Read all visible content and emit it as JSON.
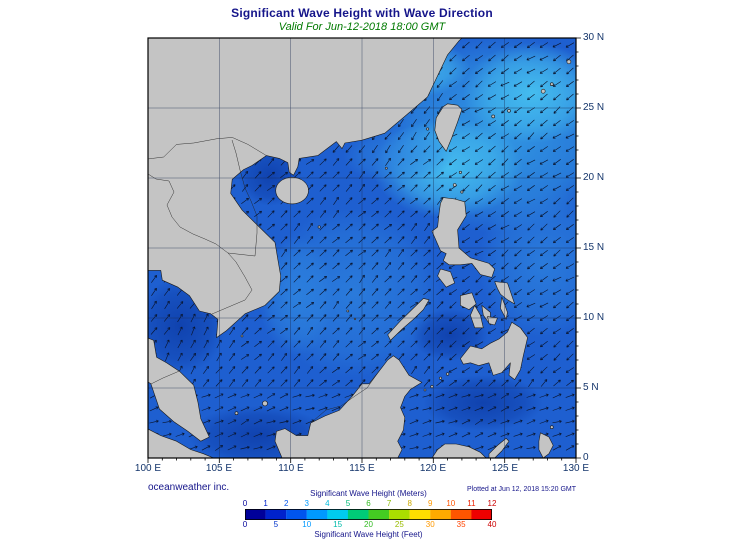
{
  "header": {
    "title": "Significant Wave Height with Wave Direction",
    "subtitle": "Valid For Jun-12-2018 18:00 GMT"
  },
  "footer": {
    "credit": "oceanweather inc.",
    "plotted": "Plotted at Jun 12, 2018 15:20 GMT"
  },
  "axes": {
    "x_ticks": [
      "100 E",
      "105 E",
      "110 E",
      "115 E",
      "120 E",
      "125 E",
      "130 E"
    ],
    "y_ticks": [
      "30 N",
      "25 N",
      "20 N",
      "15 N",
      "10 N",
      "5 N",
      "0"
    ]
  },
  "colorbar": {
    "meters_label": "Significant Wave Height (Meters)",
    "feet_label": "Significant Wave Height (Feet)",
    "meters_ticks": [
      "0",
      "1",
      "2",
      "3",
      "4",
      "5",
      "6",
      "7",
      "8",
      "9",
      "10",
      "11",
      "12"
    ],
    "feet_ticks": [
      "0",
      "5",
      "10",
      "15",
      "20",
      "25",
      "30",
      "35",
      "40"
    ],
    "colors": [
      "#000099",
      "#0022cc",
      "#0055ee",
      "#0099ff",
      "#00ccee",
      "#00cc77",
      "#44cc22",
      "#aadd00",
      "#ffdd00",
      "#ffaa00",
      "#ff5500",
      "#ee0000"
    ],
    "meters_tick_colors": [
      "#000099",
      "#0022cc",
      "#0055ee",
      "#0099ff",
      "#00bbdd",
      "#00bb77",
      "#33bb22",
      "#88bb00",
      "#ccaa00",
      "#ff9900",
      "#ff5500",
      "#ee2200",
      "#cc0000"
    ],
    "feet_tick_colors": [
      "#000099",
      "#0033cc",
      "#0099ff",
      "#00bbaa",
      "#33bb22",
      "#99bb00",
      "#ff9900",
      "#ff4400",
      "#cc0000"
    ]
  },
  "map": {
    "land_color": "#c4c4c4",
    "ocean_color": "#1e5fd0",
    "grid_color": "#1a2a50",
    "arrow_color": "#0a1630"
  },
  "chart_data": {
    "type": "heatmap",
    "title": "Significant Wave Height with Wave Direction",
    "valid_for": "Jun-12-2018 18:00 GMT",
    "plotted_at": "Jun 12, 2018 15:20 GMT",
    "x_axis_deg_east": [
      100,
      105,
      110,
      115,
      120,
      125,
      130
    ],
    "y_axis_deg_north": [
      0,
      5,
      10,
      15,
      20,
      25,
      30
    ],
    "colorbar_meters": [
      0,
      1,
      2,
      3,
      4,
      5,
      6,
      7,
      8,
      9,
      10,
      11,
      12
    ],
    "colorbar_feet": [
      0,
      5,
      10,
      15,
      20,
      25,
      30,
      35,
      40
    ],
    "visible_wave_heights_m": [
      0,
      3
    ],
    "wave_direction_summary": "Arrows point northeast-ward over the South China Sea (southwest monsoon) and west/southwest-ward over the Philippine Sea and East China Sea"
  }
}
